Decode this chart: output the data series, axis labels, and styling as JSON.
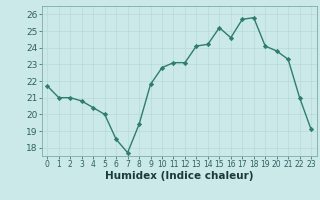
{
  "x": [
    0,
    1,
    2,
    3,
    4,
    5,
    6,
    7,
    8,
    9,
    10,
    11,
    12,
    13,
    14,
    15,
    16,
    17,
    18,
    19,
    20,
    21,
    22,
    23
  ],
  "y": [
    21.7,
    21.0,
    21.0,
    20.8,
    20.4,
    20.0,
    18.5,
    17.7,
    19.4,
    21.8,
    22.8,
    23.1,
    23.1,
    24.1,
    24.2,
    25.2,
    24.6,
    25.7,
    25.8,
    24.1,
    23.8,
    23.3,
    21.0,
    19.1
  ],
  "line_color": "#2e7d6e",
  "marker": "D",
  "markersize": 2.2,
  "linewidth": 1.0,
  "xlabel": "Humidex (Indice chaleur)",
  "xlabel_fontsize": 7.5,
  "ylim": [
    17.5,
    26.5
  ],
  "yticks": [
    18,
    19,
    20,
    21,
    22,
    23,
    24,
    25,
    26
  ],
  "xticks": [
    0,
    1,
    2,
    3,
    4,
    5,
    6,
    7,
    8,
    9,
    10,
    11,
    12,
    13,
    14,
    15,
    16,
    17,
    18,
    19,
    20,
    21,
    22,
    23
  ],
  "xtick_labels": [
    "0",
    "1",
    "2",
    "3",
    "4",
    "5",
    "6",
    "7",
    "8",
    "9",
    "10",
    "11",
    "12",
    "13",
    "14",
    "15",
    "16",
    "17",
    "18",
    "19",
    "20",
    "21",
    "22",
    "23"
  ],
  "bg_color": "#cce9e9",
  "grid_color": "#b8d8d8",
  "tick_label_color": "#2e6060",
  "xlabel_color": "#1a3a3a",
  "axis_color": "#7aadad"
}
